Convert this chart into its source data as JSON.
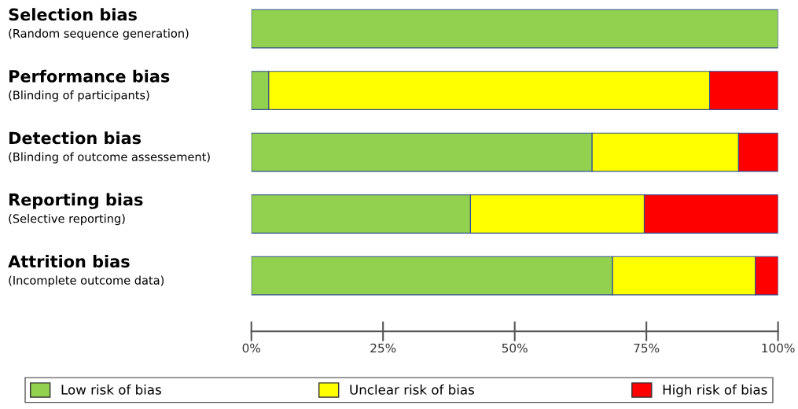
{
  "chart_data": {
    "type": "bar",
    "orientation": "horizontal",
    "stacked": true,
    "categories": [
      "Selection bias\n(Random sequence generation)",
      "Performance bias\n(Blinding of participants)",
      "Detection bias\n(Blinding of outcome assessement)",
      "Reporting bias\n(Selective reporting)",
      "Attrition bias\n(Incomplete outcome data)"
    ],
    "series": [
      {
        "name": "Low risk of bias",
        "color": "#92d050",
        "values": [
          100,
          3.3,
          64.7,
          41.6,
          68.6
        ]
      },
      {
        "name": "Unclear risk of bias",
        "color": "#ffff00",
        "values": [
          0,
          83.7,
          27.8,
          33,
          27.1
        ]
      },
      {
        "name": "High risk of bias",
        "color": "#ff0000",
        "values": [
          0,
          13,
          7.5,
          25.4,
          4.3
        ]
      }
    ],
    "xlim": [
      0,
      100
    ],
    "xticks": [
      {
        "value": 0,
        "label": "0%"
      },
      {
        "value": 25,
        "label": "25%"
      },
      {
        "value": 50,
        "label": "50%"
      },
      {
        "value": 75,
        "label": "75%"
      },
      {
        "value": 100,
        "label": "100%"
      }
    ],
    "legend": "bottom",
    "grid": false
  }
}
